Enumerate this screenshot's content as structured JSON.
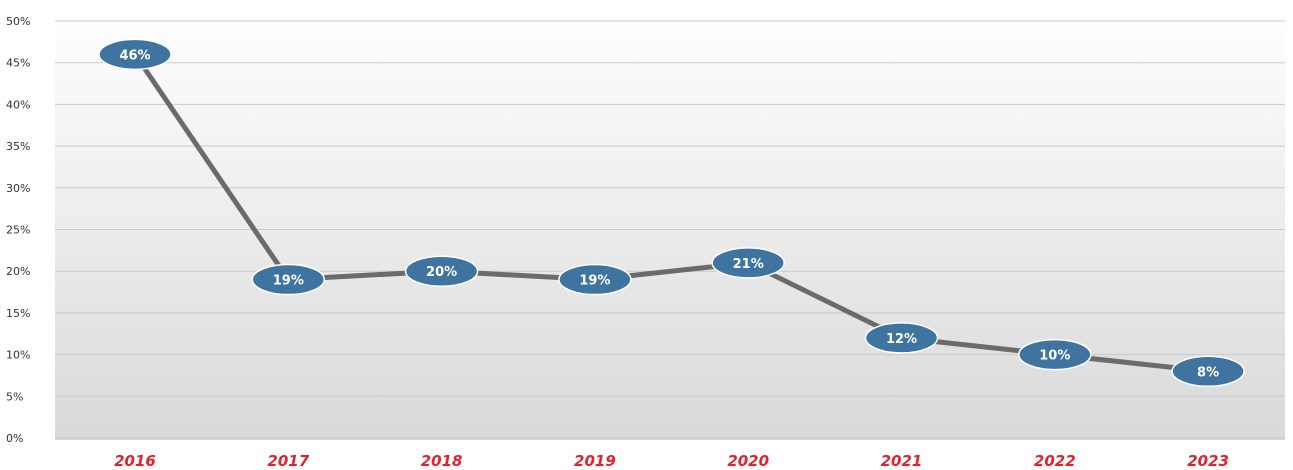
{
  "chart_data": {
    "type": "line",
    "title": "",
    "xlabel": "",
    "ylabel": "",
    "categories": [
      "2016",
      "2017",
      "2018",
      "2019",
      "2020",
      "2021",
      "2022",
      "2023"
    ],
    "series": [
      {
        "values": [
          46,
          19,
          20,
          19,
          21,
          12,
          10,
          8
        ],
        "data_labels": [
          "46%",
          "19%",
          "20%",
          "19%",
          "21%",
          "12%",
          "10%",
          "8%"
        ]
      }
    ],
    "ylim": [
      0,
      50
    ],
    "y_ticks": [
      0,
      5,
      10,
      15,
      20,
      25,
      30,
      35,
      40,
      45,
      50
    ],
    "y_tick_labels": [
      "0%",
      "5%",
      "10%",
      "15%",
      "20%",
      "25%",
      "30%",
      "35%",
      "40%",
      "45%",
      "50%"
    ],
    "grid": true,
    "legend": "none",
    "colors": {
      "line": "#6b6b6b",
      "marker": "#3f74a0",
      "category_label": "#e8202a",
      "gridline": "#c9c9c9",
      "background_top": "#ffffff",
      "background_bottom": "#d9d9d9"
    }
  }
}
